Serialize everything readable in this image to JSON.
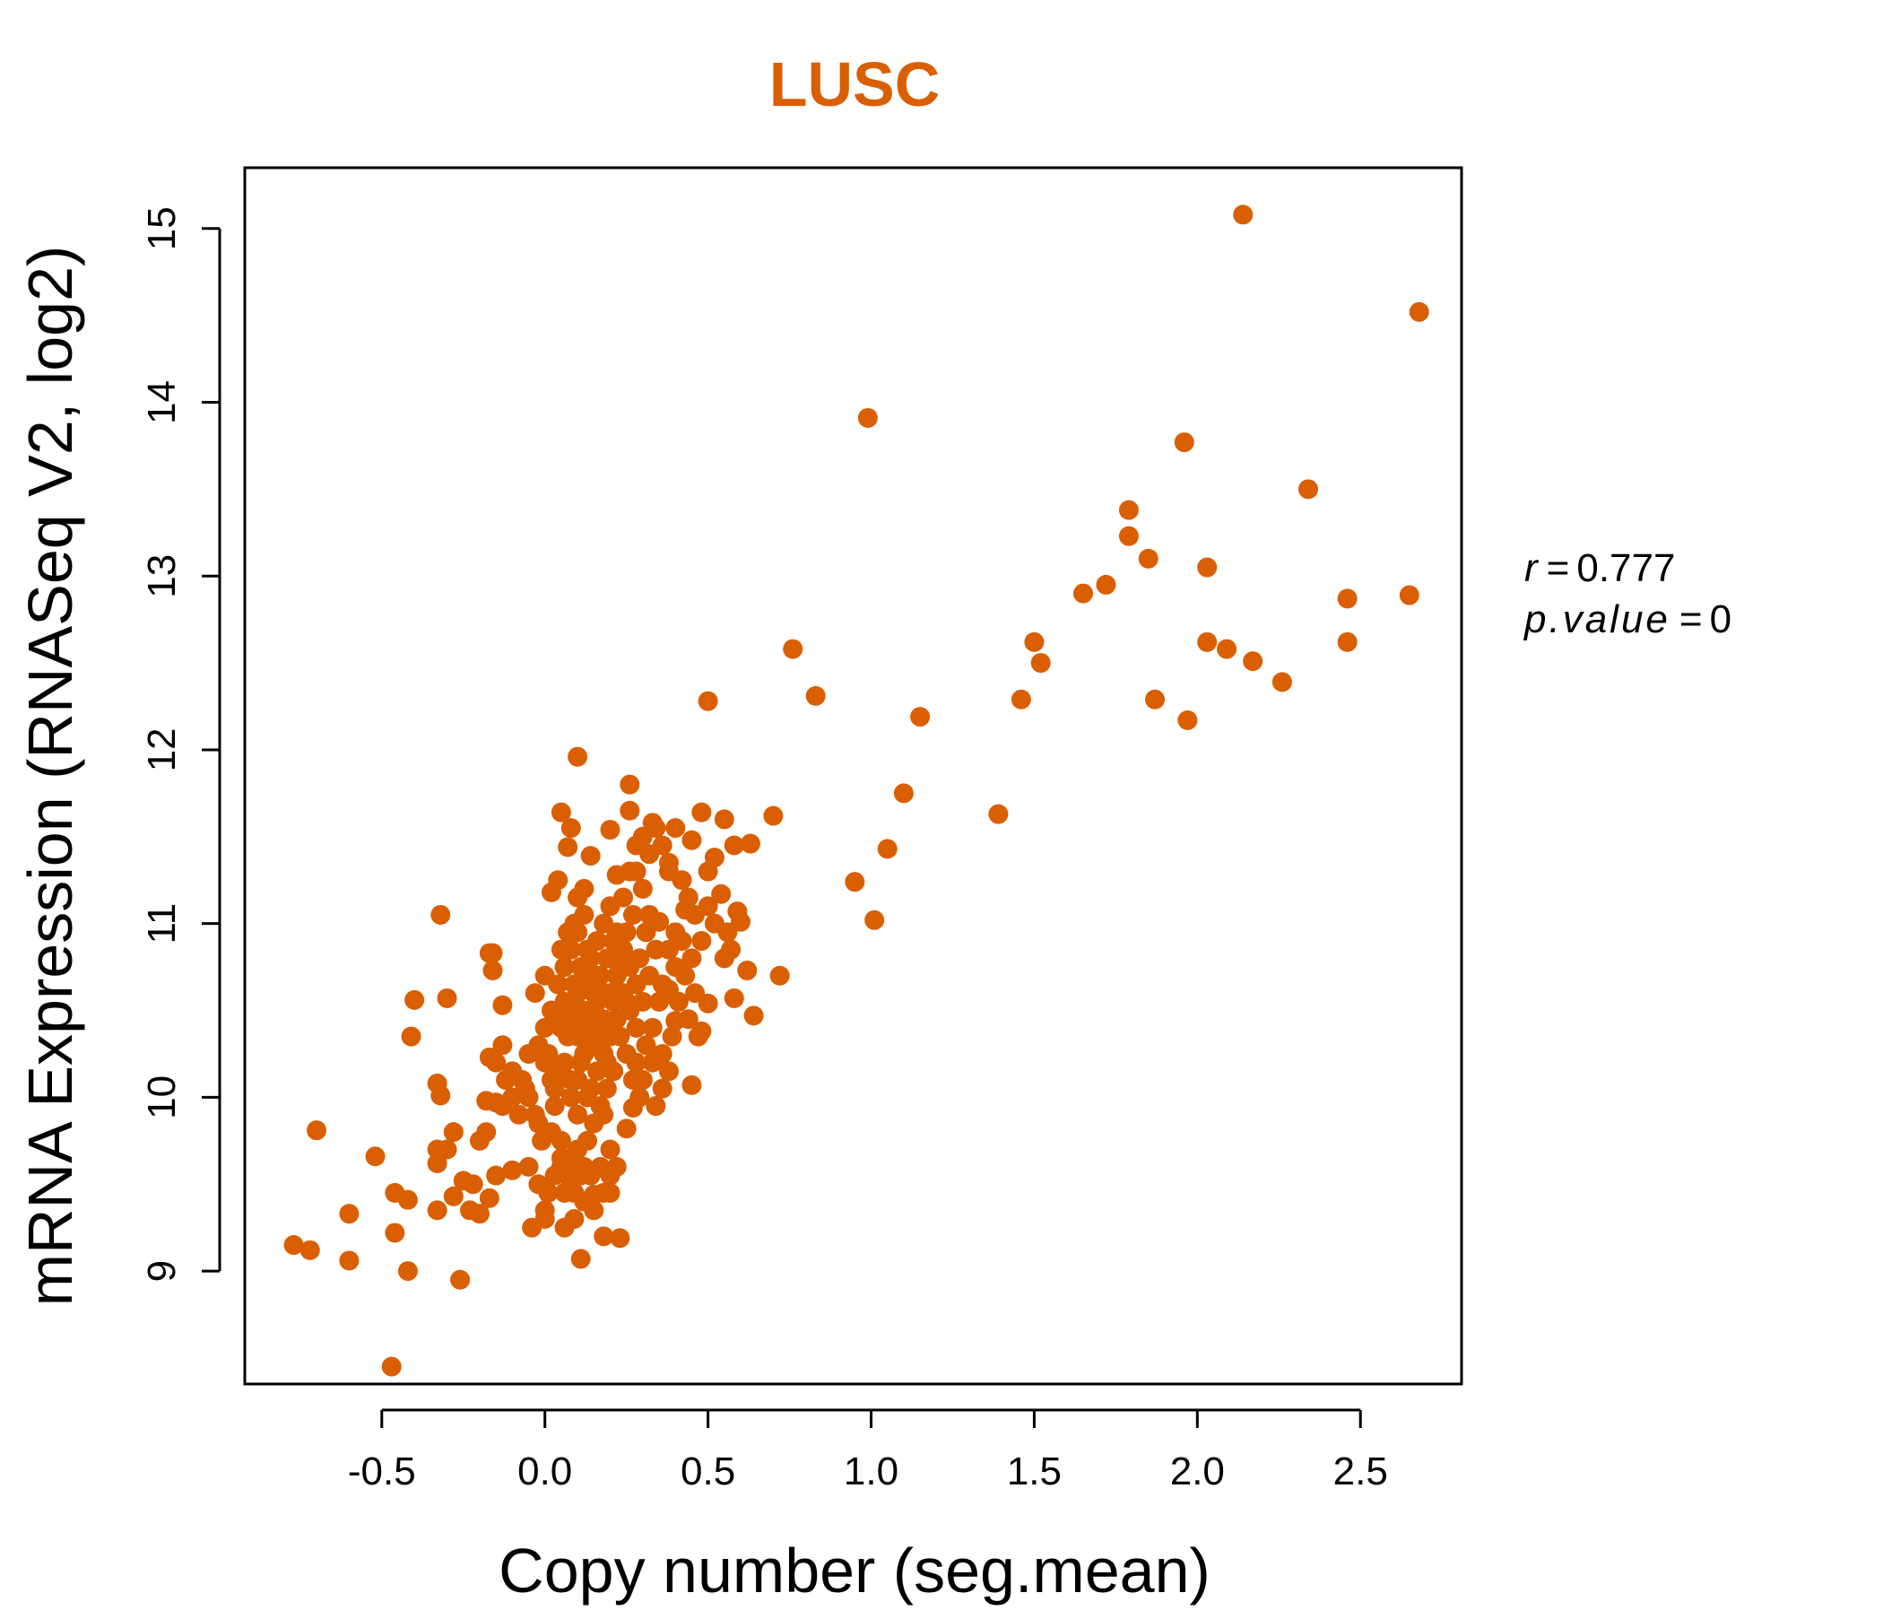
{
  "chart_data": {
    "type": "scatter",
    "title": "LUSC",
    "xlabel": "Copy number (seg.mean)",
    "ylabel": "mRNA Expression (RNASeq V2, log2)",
    "xlim": [
      -0.92,
      2.81
    ],
    "ylim": [
      8.35,
      15.35
    ],
    "xticks": [
      -0.5,
      0.0,
      0.5,
      1.0,
      1.5,
      2.0,
      2.5
    ],
    "xtick_labels": [
      "-0.5",
      "0.0",
      "0.5",
      "1.0",
      "1.5",
      "2.0",
      "2.5"
    ],
    "yticks": [
      9,
      10,
      11,
      12,
      13,
      14,
      15
    ],
    "ytick_labels": [
      "9",
      "10",
      "11",
      "12",
      "13",
      "14",
      "15"
    ],
    "grid": false,
    "point_color": "#D95F02",
    "title_color": "#D95F02",
    "stats": {
      "r_label": "r",
      "r_value": "0.777",
      "p_label": "p.value",
      "p_value": "0"
    },
    "points": [
      [
        2.14,
        15.08
      ],
      [
        2.68,
        14.52
      ],
      [
        0.99,
        13.91
      ],
      [
        1.96,
        13.77
      ],
      [
        2.34,
        13.5
      ],
      [
        1.79,
        13.38
      ],
      [
        1.79,
        13.23
      ],
      [
        1.85,
        13.1
      ],
      [
        2.03,
        13.05
      ],
      [
        1.72,
        12.95
      ],
      [
        1.65,
        12.9
      ],
      [
        2.65,
        12.89
      ],
      [
        2.46,
        12.87
      ],
      [
        0.76,
        12.58
      ],
      [
        1.5,
        12.62
      ],
      [
        2.03,
        12.62
      ],
      [
        2.46,
        12.62
      ],
      [
        2.09,
        12.58
      ],
      [
        2.17,
        12.51
      ],
      [
        1.52,
        12.5
      ],
      [
        2.26,
        12.39
      ],
      [
        0.83,
        12.31
      ],
      [
        1.46,
        12.29
      ],
      [
        1.87,
        12.29
      ],
      [
        0.5,
        12.28
      ],
      [
        1.15,
        12.19
      ],
      [
        1.97,
        12.17
      ],
      [
        0.1,
        11.96
      ],
      [
        0.26,
        11.8
      ],
      [
        1.1,
        11.75
      ],
      [
        1.39,
        11.63
      ],
      [
        0.05,
        11.64
      ],
      [
        0.08,
        11.55
      ],
      [
        0.48,
        11.64
      ],
      [
        0.55,
        11.6
      ],
      [
        0.7,
        11.62
      ],
      [
        0.26,
        11.65
      ],
      [
        0.2,
        11.54
      ],
      [
        0.33,
        11.58
      ],
      [
        0.4,
        11.55
      ],
      [
        0.63,
        11.46
      ],
      [
        1.05,
        11.43
      ],
      [
        0.95,
        11.24
      ],
      [
        1.01,
        11.02
      ],
      [
        0.45,
        11.48
      ],
      [
        0.52,
        11.38
      ],
      [
        0.58,
        11.45
      ],
      [
        0.07,
        11.44
      ],
      [
        0.14,
        11.39
      ],
      [
        0.22,
        11.28
      ],
      [
        0.3,
        11.2
      ],
      [
        0.5,
        11.3
      ],
      [
        0.38,
        11.3
      ],
      [
        0.28,
        11.45
      ],
      [
        0.12,
        11.2
      ],
      [
        0.04,
        11.25
      ],
      [
        0.02,
        11.18
      ],
      [
        0.1,
        11.15
      ],
      [
        0.54,
        11.17
      ],
      [
        0.59,
        11.07
      ],
      [
        0.6,
        11.01
      ],
      [
        0.43,
        11.08
      ],
      [
        0.35,
        11.01
      ],
      [
        0.32,
        11.05
      ],
      [
        0.48,
        10.9
      ],
      [
        0.55,
        10.8
      ],
      [
        0.62,
        10.73
      ],
      [
        0.72,
        10.7
      ],
      [
        0.4,
        10.75
      ],
      [
        0.45,
        10.8
      ],
      [
        0.38,
        10.62
      ],
      [
        0.58,
        10.57
      ],
      [
        0.5,
        10.54
      ],
      [
        0.64,
        10.47
      ],
      [
        0.4,
        10.44
      ],
      [
        0.48,
        10.38
      ],
      [
        0.47,
        10.35
      ],
      [
        0.39,
        10.35
      ],
      [
        0.45,
        10.07
      ],
      [
        0.33,
        10.2
      ],
      [
        0.3,
        10.1
      ],
      [
        0.28,
        10.2
      ],
      [
        0.27,
        9.94
      ],
      [
        0.25,
        9.82
      ],
      [
        0.23,
        9.19
      ],
      [
        0.11,
        9.07
      ],
      [
        0.06,
        9.25
      ],
      [
        0.0,
        9.3
      ],
      [
        -0.04,
        9.25
      ],
      [
        0.0,
        9.35
      ],
      [
        0.08,
        9.5
      ],
      [
        0.15,
        9.44
      ],
      [
        0.18,
        9.45
      ],
      [
        0.2,
        9.55
      ],
      [
        0.2,
        9.7
      ],
      [
        0.18,
        9.9
      ],
      [
        0.13,
        10.0
      ],
      [
        0.05,
        9.6
      ],
      [
        -0.02,
        9.5
      ],
      [
        -0.05,
        9.6
      ],
      [
        -0.1,
        9.58
      ],
      [
        -0.15,
        9.55
      ],
      [
        -0.18,
        9.8
      ],
      [
        -0.2,
        9.75
      ],
      [
        -0.22,
        9.5
      ],
      [
        -0.17,
        9.42
      ],
      [
        -0.2,
        9.33
      ],
      [
        -0.23,
        9.35
      ],
      [
        -0.25,
        9.52
      ],
      [
        -0.28,
        9.43
      ],
      [
        -0.28,
        9.8
      ],
      [
        -0.3,
        9.7
      ],
      [
        -0.33,
        9.62
      ],
      [
        -0.33,
        9.7
      ],
      [
        -0.33,
        9.35
      ],
      [
        -0.26,
        8.95
      ],
      [
        -0.42,
        9.0
      ],
      [
        -0.47,
        8.45
      ],
      [
        -0.46,
        9.22
      ],
      [
        -0.42,
        9.41
      ],
      [
        -0.46,
        9.45
      ],
      [
        -0.52,
        9.66
      ],
      [
        -0.6,
        9.06
      ],
      [
        -0.6,
        9.33
      ],
      [
        -0.7,
        9.81
      ],
      [
        -0.72,
        9.12
      ],
      [
        -0.77,
        9.15
      ],
      [
        -0.33,
        10.08
      ],
      [
        -0.32,
        10.01
      ],
      [
        -0.41,
        10.35
      ],
      [
        -0.4,
        10.56
      ],
      [
        -0.3,
        10.57
      ],
      [
        -0.32,
        11.05
      ],
      [
        -0.17,
        10.83
      ],
      [
        -0.16,
        10.73
      ],
      [
        -0.16,
        10.83
      ],
      [
        -0.13,
        10.53
      ],
      [
        -0.17,
        10.23
      ],
      [
        -0.13,
        10.3
      ],
      [
        -0.15,
        10.2
      ],
      [
        -0.1,
        10.15
      ],
      [
        -0.07,
        10.1
      ],
      [
        -0.05,
        10.0
      ],
      [
        -0.13,
        9.95
      ],
      [
        -0.18,
        9.98
      ],
      [
        -0.15,
        9.97
      ],
      [
        -0.05,
        10.25
      ],
      [
        -0.02,
        10.3
      ],
      [
        -0.03,
        10.6
      ],
      [
        0.0,
        10.4
      ],
      [
        0.02,
        10.5
      ],
      [
        0.0,
        10.7
      ],
      [
        0.0,
        10.2
      ],
      [
        0.02,
        10.1
      ],
      [
        0.03,
        9.95
      ],
      [
        -0.02,
        9.85
      ],
      [
        0.02,
        9.8
      ],
      [
        0.05,
        9.75
      ],
      [
        0.08,
        9.65
      ],
      [
        0.1,
        9.7
      ],
      [
        0.12,
        9.6
      ],
      [
        0.1,
        9.9
      ],
      [
        0.08,
        10.0
      ],
      [
        0.06,
        10.2
      ],
      [
        0.05,
        10.4
      ],
      [
        0.08,
        10.5
      ],
      [
        0.1,
        10.6
      ],
      [
        0.12,
        10.7
      ],
      [
        0.14,
        10.8
      ],
      [
        0.16,
        10.9
      ],
      [
        0.18,
        11.0
      ],
      [
        0.2,
        11.1
      ],
      [
        0.22,
        10.95
      ],
      [
        0.24,
        10.85
      ],
      [
        0.26,
        10.75
      ],
      [
        0.28,
        10.65
      ],
      [
        0.25,
        10.55
      ],
      [
        0.22,
        10.45
      ],
      [
        0.2,
        10.35
      ],
      [
        0.18,
        10.25
      ],
      [
        0.16,
        10.15
      ],
      [
        0.14,
        10.05
      ],
      [
        0.12,
        10.25
      ],
      [
        0.1,
        10.35
      ],
      [
        0.08,
        10.45
      ],
      [
        0.06,
        10.55
      ],
      [
        0.04,
        10.65
      ],
      [
        0.06,
        10.75
      ],
      [
        0.08,
        10.85
      ],
      [
        0.1,
        10.95
      ],
      [
        0.12,
        11.05
      ],
      [
        0.14,
        10.65
      ],
      [
        0.16,
        10.55
      ],
      [
        0.18,
        10.45
      ],
      [
        0.2,
        10.6
      ],
      [
        0.22,
        10.7
      ],
      [
        0.24,
        10.6
      ],
      [
        0.26,
        10.5
      ],
      [
        0.28,
        10.4
      ],
      [
        0.3,
        10.55
      ],
      [
        0.32,
        10.7
      ],
      [
        0.34,
        10.85
      ],
      [
        0.35,
        10.55
      ],
      [
        0.33,
        10.4
      ],
      [
        0.31,
        10.3
      ],
      [
        0.29,
        10.0
      ],
      [
        0.27,
        10.1
      ],
      [
        0.25,
        10.25
      ],
      [
        0.23,
        10.35
      ],
      [
        0.21,
        10.15
      ],
      [
        0.19,
        10.05
      ],
      [
        0.17,
        9.95
      ],
      [
        0.15,
        9.85
      ],
      [
        0.13,
        9.75
      ],
      [
        0.11,
        9.55
      ],
      [
        0.09,
        9.45
      ],
      [
        0.07,
        9.55
      ],
      [
        0.05,
        9.65
      ],
      [
        0.03,
        9.55
      ],
      [
        0.01,
        9.45
      ],
      [
        -0.01,
        9.75
      ],
      [
        -0.03,
        9.9
      ],
      [
        -0.06,
        10.05
      ],
      [
        -0.08,
        9.9
      ],
      [
        -0.1,
        10.0
      ],
      [
        -0.12,
        10.1
      ],
      [
        0.15,
        10.3
      ],
      [
        0.17,
        10.7
      ],
      [
        0.19,
        10.8
      ],
      [
        0.21,
        10.9
      ],
      [
        0.13,
        10.85
      ],
      [
        0.11,
        10.75
      ],
      [
        0.09,
        10.65
      ],
      [
        0.07,
        10.35
      ],
      [
        0.05,
        10.15
      ],
      [
        0.03,
        10.05
      ],
      [
        0.01,
        10.25
      ],
      [
        0.03,
        10.45
      ],
      [
        0.05,
        10.85
      ],
      [
        0.07,
        10.95
      ],
      [
        0.09,
        11.0
      ],
      [
        0.11,
        10.2
      ],
      [
        0.13,
        10.4
      ],
      [
        0.15,
        10.6
      ],
      [
        0.17,
        10.35
      ],
      [
        0.19,
        10.2
      ],
      [
        0.21,
        10.55
      ],
      [
        0.23,
        10.75
      ],
      [
        0.25,
        10.95
      ],
      [
        0.27,
        11.05
      ],
      [
        0.29,
        10.8
      ],
      [
        0.31,
        10.95
      ],
      [
        0.36,
        10.25
      ],
      [
        0.38,
        10.15
      ],
      [
        0.36,
        10.05
      ],
      [
        0.34,
        9.95
      ],
      [
        0.18,
        9.2
      ],
      [
        0.15,
        9.35
      ],
      [
        0.12,
        9.4
      ],
      [
        0.09,
        9.3
      ],
      [
        0.06,
        9.45
      ],
      [
        0.2,
        9.45
      ],
      [
        0.22,
        9.6
      ],
      [
        0.17,
        9.6
      ],
      [
        0.14,
        9.55
      ],
      [
        0.08,
        10.1
      ],
      [
        0.1,
        10.1
      ],
      [
        0.12,
        10.5
      ],
      [
        0.14,
        10.45
      ],
      [
        0.16,
        10.7
      ],
      [
        0.18,
        10.6
      ],
      [
        0.2,
        10.8
      ],
      [
        0.22,
        10.85
      ],
      [
        0.24,
        11.15
      ],
      [
        0.26,
        11.3
      ],
      [
        0.28,
        11.3
      ],
      [
        0.3,
        11.5
      ],
      [
        0.32,
        11.4
      ],
      [
        0.34,
        11.55
      ],
      [
        0.36,
        11.45
      ],
      [
        0.38,
        11.35
      ],
      [
        0.42,
        11.25
      ],
      [
        0.44,
        11.15
      ],
      [
        0.46,
        11.05
      ],
      [
        0.5,
        11.1
      ],
      [
        0.52,
        11.0
      ],
      [
        0.56,
        10.95
      ],
      [
        0.57,
        10.85
      ],
      [
        0.42,
        10.9
      ],
      [
        0.4,
        10.95
      ],
      [
        0.38,
        10.85
      ],
      [
        0.43,
        10.7
      ],
      [
        0.46,
        10.6
      ],
      [
        0.41,
        10.55
      ],
      [
        0.44,
        10.45
      ],
      [
        0.36,
        10.65
      ]
    ]
  }
}
